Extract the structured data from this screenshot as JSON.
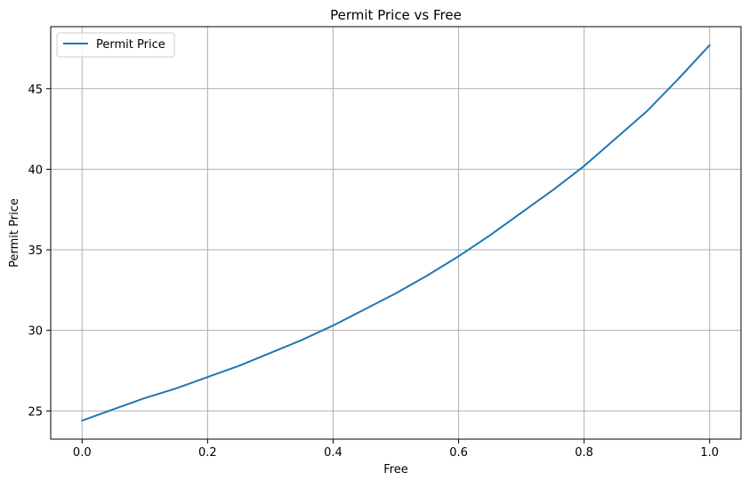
{
  "chart_data": {
    "type": "line",
    "title": "Permit Price vs Free",
    "xlabel": "Free",
    "ylabel": "Permit Price",
    "xlim": [
      -0.05,
      1.05
    ],
    "ylim": [
      23.25,
      48.85
    ],
    "x_ticks": [
      0.0,
      0.2,
      0.4,
      0.6,
      0.8,
      1.0
    ],
    "x_tick_labels": [
      "0.0",
      "0.2",
      "0.4",
      "0.6",
      "0.8",
      "1.0"
    ],
    "y_ticks": [
      25,
      30,
      35,
      40,
      45
    ],
    "y_tick_labels": [
      "25",
      "30",
      "35",
      "40",
      "45"
    ],
    "grid": true,
    "legend": {
      "position": "top-left",
      "entries": [
        "Permit Price"
      ]
    },
    "series": [
      {
        "name": "Permit Price",
        "color": "#1f77b4",
        "x": [
          0.0,
          0.05,
          0.1,
          0.15,
          0.2,
          0.25,
          0.3,
          0.35,
          0.4,
          0.45,
          0.5,
          0.55,
          0.6,
          0.65,
          0.7,
          0.75,
          0.8,
          0.85,
          0.9,
          0.95,
          1.0
        ],
        "y": [
          24.4,
          25.1,
          25.8,
          26.4,
          27.1,
          27.8,
          28.6,
          29.4,
          30.3,
          31.3,
          32.3,
          33.4,
          34.6,
          35.9,
          37.3,
          38.7,
          40.2,
          41.9,
          43.6,
          45.6,
          47.7
        ]
      }
    ]
  }
}
